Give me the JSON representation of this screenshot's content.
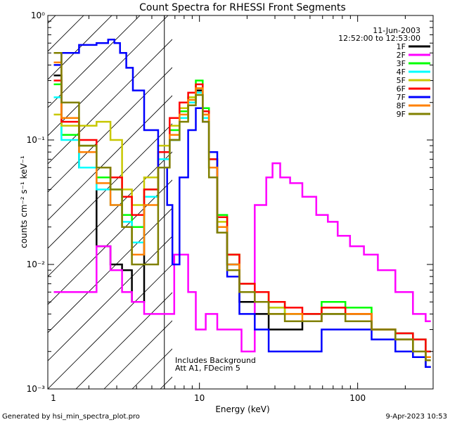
{
  "chart_data": {
    "type": "line",
    "title": "Count Spectra for RHESSI Front Segments",
    "xlabel": "Energy (keV)",
    "ylabel": "counts cm⁻² s⁻¹ keV⁻¹",
    "xscale": "log",
    "yscale": "log",
    "xlim": [
      1.1,
      300
    ],
    "ylim": [
      0.001,
      1.0
    ],
    "x_ticks": [
      {
        "value": 1,
        "label": "1"
      },
      {
        "value": 10,
        "label": "10"
      },
      {
        "value": 100,
        "label": "100"
      }
    ],
    "y_ticks": [
      {
        "value": 1,
        "label": "10⁰"
      },
      {
        "value": 0.1,
        "label": "10⁻¹"
      },
      {
        "value": 0.01,
        "label": "10⁻²"
      },
      {
        "value": 0.001,
        "label": "10⁻³"
      }
    ],
    "legend_position": "top-right",
    "header_date": "11-Jun-2003",
    "header_time": "12:52:00 to 12:53:00",
    "annotations": [
      "Includes Background",
      "Att A1, FDecim 5"
    ],
    "attenuator_boundary_kev": 6,
    "series": [
      {
        "name": "1F",
        "color": "#000000",
        "x": [
          1.2,
          1.5,
          2.0,
          2.5,
          3.0,
          3.5,
          4.0,
          5.0,
          6.0,
          7.0,
          8.0,
          9.0,
          10.0,
          11.0,
          12.0,
          14.0,
          16.0,
          20.0,
          25.0,
          30.0,
          40.0,
          50.0,
          70.0,
          100.0,
          150.0,
          200.0,
          250.0,
          290.0
        ],
        "y": [
          0.33,
          0.13,
          0.06,
          0.014,
          0.01,
          0.009,
          0.005,
          0.035,
          0.06,
          0.1,
          0.15,
          0.2,
          0.25,
          0.15,
          0.06,
          0.018,
          0.01,
          0.005,
          0.004,
          0.003,
          0.003,
          0.0035,
          0.004,
          0.004,
          0.003,
          0.0028,
          0.002,
          0.0015
        ]
      },
      {
        "name": "2F",
        "color": "#ff00ff",
        "x": [
          1.2,
          2.0,
          2.5,
          3.0,
          3.5,
          4.0,
          5.0,
          6.0,
          8.0,
          9.0,
          10.0,
          12.0,
          14.0,
          17.0,
          20.0,
          25.0,
          28.0,
          30.0,
          35.0,
          40.0,
          50.0,
          60.0,
          70.0,
          80.0,
          100.0,
          120.0,
          150.0,
          200.0,
          250.0,
          290.0
        ],
        "y": [
          0.006,
          0.006,
          0.014,
          0.009,
          0.006,
          0.005,
          0.004,
          0.004,
          0.012,
          0.006,
          0.003,
          0.004,
          0.003,
          0.003,
          0.002,
          0.03,
          0.05,
          0.065,
          0.05,
          0.045,
          0.035,
          0.025,
          0.022,
          0.017,
          0.014,
          0.012,
          0.009,
          0.006,
          0.004,
          0.0035
        ]
      },
      {
        "name": "3F",
        "color": "#00ff00",
        "x": [
          1.2,
          1.5,
          2.0,
          2.5,
          3.0,
          3.5,
          4.0,
          5.0,
          6.0,
          7.0,
          8.0,
          9.0,
          10.0,
          11.0,
          12.0,
          14.0,
          16.0,
          20.0,
          25.0,
          30.0,
          40.0,
          50.0,
          70.0,
          100.0,
          150.0,
          200.0,
          250.0,
          290.0
        ],
        "y": [
          0.28,
          0.11,
          0.09,
          0.05,
          0.04,
          0.025,
          0.02,
          0.04,
          0.08,
          0.12,
          0.17,
          0.22,
          0.3,
          0.18,
          0.07,
          0.025,
          0.012,
          0.007,
          0.006,
          0.005,
          0.004,
          0.004,
          0.005,
          0.0045,
          0.003,
          0.0028,
          0.0025,
          0.002
        ]
      },
      {
        "name": "4F",
        "color": "#00ffff",
        "x": [
          1.2,
          1.5,
          2.0,
          2.5,
          3.0,
          3.5,
          4.0,
          5.0,
          6.0,
          7.0,
          8.0,
          9.0,
          10.0,
          11.0,
          12.0,
          14.0,
          16.0,
          20.0,
          25.0,
          30.0,
          40.0,
          50.0,
          70.0,
          100.0,
          150.0,
          200.0,
          250.0,
          290.0
        ],
        "y": [
          0.22,
          0.1,
          0.06,
          0.04,
          0.03,
          0.022,
          0.015,
          0.035,
          0.07,
          0.1,
          0.15,
          0.2,
          0.24,
          0.15,
          0.06,
          0.02,
          0.01,
          0.006,
          0.005,
          0.0045,
          0.004,
          0.004,
          0.004,
          0.004,
          0.003,
          0.0025,
          0.002,
          0.0018
        ]
      },
      {
        "name": "5F",
        "color": "#c8c800",
        "x": [
          1.2,
          1.5,
          2.0,
          2.5,
          3.0,
          3.5,
          4.0,
          5.0,
          6.0,
          7.0,
          8.0,
          9.0,
          10.0,
          11.0,
          12.0,
          14.0,
          16.0,
          20.0,
          25.0,
          30.0,
          40.0,
          50.0,
          70.0,
          100.0,
          150.0,
          200.0,
          250.0,
          290.0
        ],
        "y": [
          0.16,
          0.13,
          0.13,
          0.14,
          0.1,
          0.04,
          0.03,
          0.05,
          0.09,
          0.13,
          0.18,
          0.22,
          0.26,
          0.16,
          0.06,
          0.022,
          0.012,
          0.007,
          0.006,
          0.0045,
          0.004,
          0.004,
          0.0045,
          0.004,
          0.003,
          0.0025,
          0.002,
          0.0018
        ]
      },
      {
        "name": "6F",
        "color": "#ff0000",
        "x": [
          1.2,
          1.5,
          2.0,
          2.5,
          3.0,
          3.5,
          4.0,
          5.0,
          6.0,
          7.0,
          8.0,
          9.0,
          10.0,
          11.0,
          12.0,
          14.0,
          16.0,
          20.0,
          25.0,
          30.0,
          40.0,
          50.0,
          70.0,
          100.0,
          150.0,
          200.0,
          250.0,
          290.0
        ],
        "y": [
          0.3,
          0.14,
          0.1,
          0.06,
          0.05,
          0.035,
          0.025,
          0.04,
          0.08,
          0.15,
          0.2,
          0.24,
          0.28,
          0.17,
          0.07,
          0.024,
          0.012,
          0.007,
          0.006,
          0.005,
          0.0045,
          0.004,
          0.0045,
          0.004,
          0.003,
          0.0028,
          0.0025,
          0.002
        ]
      },
      {
        "name": "7F",
        "color": "#0000ff",
        "x": [
          1.2,
          1.5,
          2.0,
          2.5,
          2.8,
          3.0,
          3.3,
          3.6,
          4.0,
          5.0,
          6.0,
          6.5,
          7.0,
          8.0,
          9.0,
          10.0,
          11.0,
          12.0,
          14.0,
          16.0,
          20.0,
          25.0,
          30.0,
          40.0,
          50.0,
          70.0,
          100.0,
          150.0,
          200.0,
          250.0,
          290.0
        ],
        "y": [
          0.4,
          0.5,
          0.58,
          0.6,
          0.64,
          0.6,
          0.5,
          0.38,
          0.25,
          0.12,
          0.06,
          0.03,
          0.01,
          0.05,
          0.12,
          0.18,
          0.14,
          0.08,
          0.02,
          0.008,
          0.004,
          0.003,
          0.002,
          0.002,
          0.002,
          0.003,
          0.003,
          0.0025,
          0.002,
          0.0018,
          0.0015
        ]
      },
      {
        "name": "8F",
        "color": "#ff8000",
        "x": [
          1.2,
          1.5,
          2.0,
          2.5,
          3.0,
          3.5,
          4.0,
          5.0,
          6.0,
          7.0,
          8.0,
          9.0,
          10.0,
          11.0,
          12.0,
          14.0,
          16.0,
          20.0,
          25.0,
          30.0,
          40.0,
          50.0,
          70.0,
          100.0,
          150.0,
          200.0,
          250.0,
          290.0
        ],
        "y": [
          0.42,
          0.15,
          0.08,
          0.045,
          0.03,
          0.02,
          0.012,
          0.03,
          0.06,
          0.11,
          0.16,
          0.21,
          0.26,
          0.16,
          0.06,
          0.02,
          0.01,
          0.006,
          0.005,
          0.004,
          0.004,
          0.0035,
          0.004,
          0.004,
          0.003,
          0.0025,
          0.002,
          0.0018
        ]
      },
      {
        "name": "9F",
        "color": "#808000",
        "x": [
          1.2,
          1.5,
          2.0,
          2.5,
          3.0,
          3.5,
          4.0,
          5.0,
          6.0,
          7.0,
          8.0,
          9.0,
          10.0,
          11.0,
          12.0,
          14.0,
          16.0,
          20.0,
          25.0,
          30.0,
          40.0,
          50.0,
          70.0,
          100.0,
          150.0,
          200.0,
          250.0,
          290.0
        ],
        "y": [
          0.5,
          0.2,
          0.09,
          0.06,
          0.04,
          0.02,
          0.01,
          0.01,
          0.06,
          0.1,
          0.14,
          0.19,
          0.23,
          0.14,
          0.05,
          0.018,
          0.009,
          0.006,
          0.005,
          0.004,
          0.0035,
          0.0035,
          0.004,
          0.0035,
          0.003,
          0.0025,
          0.002,
          0.0017
        ]
      }
    ]
  },
  "footer": {
    "generator": "Generated by hsi_min_spectra_plot.pro",
    "timestamp": "9-Apr-2023 10:53"
  }
}
